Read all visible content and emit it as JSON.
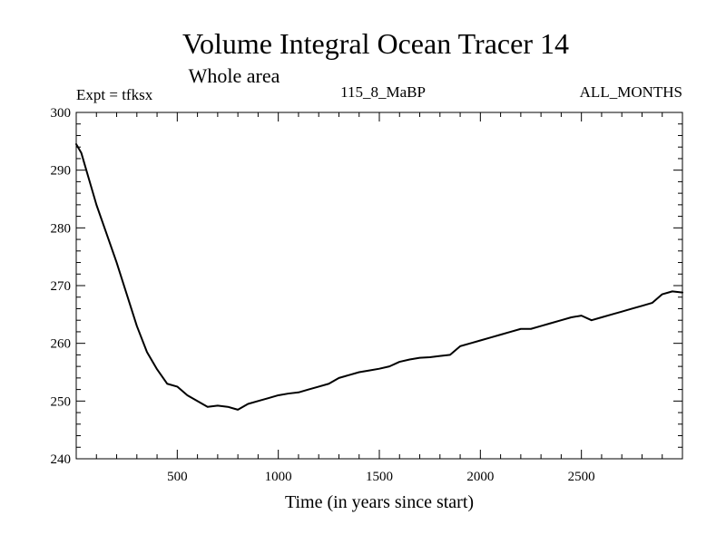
{
  "chart_data": {
    "type": "line",
    "title": "Volume Integral Ocean Tracer 14",
    "subtitle": "Whole area",
    "annotations": {
      "left": "Expt = tfksx",
      "center": "115_8_MaBP",
      "right": "ALL_MONTHS"
    },
    "xlabel": "Time (in years since start)",
    "ylabel": "",
    "xlim": [
      0,
      3000
    ],
    "ylim": [
      240,
      300
    ],
    "xticks": [
      500,
      1000,
      1500,
      2000,
      2500
    ],
    "yticks": [
      240,
      250,
      260,
      270,
      280,
      290,
      300
    ],
    "grid": false,
    "line_color": "#000000",
    "series": [
      {
        "name": "Tracer 14",
        "x": [
          0,
          25,
          50,
          75,
          100,
          150,
          200,
          250,
          300,
          350,
          400,
          450,
          500,
          550,
          600,
          650,
          700,
          750,
          800,
          850,
          900,
          950,
          1000,
          1050,
          1100,
          1150,
          1200,
          1250,
          1300,
          1350,
          1400,
          1450,
          1500,
          1550,
          1600,
          1650,
          1700,
          1750,
          1800,
          1850,
          1900,
          1950,
          2000,
          2050,
          2100,
          2150,
          2200,
          2250,
          2300,
          2350,
          2400,
          2450,
          2500,
          2550,
          2600,
          2650,
          2700,
          2750,
          2800,
          2850,
          2900,
          2950,
          3000
        ],
        "y": [
          294.5,
          293.0,
          290.0,
          287.0,
          284.0,
          279.0,
          274.0,
          268.5,
          263.0,
          258.5,
          255.5,
          253.0,
          252.5,
          251.0,
          250.0,
          249.0,
          249.2,
          249.0,
          248.5,
          249.5,
          250.0,
          250.5,
          251.0,
          251.3,
          251.5,
          252.0,
          252.5,
          253.0,
          254.0,
          254.5,
          255.0,
          255.3,
          255.6,
          256.0,
          256.8,
          257.2,
          257.5,
          257.6,
          257.8,
          258.0,
          259.5,
          260.0,
          260.5,
          261.0,
          261.5,
          262.0,
          262.5,
          262.5,
          263.0,
          263.5,
          264.0,
          264.5,
          264.8,
          264.0,
          264.5,
          265.0,
          265.5,
          266.0,
          266.5,
          267.0,
          268.5,
          269.0,
          268.8
        ]
      }
    ]
  }
}
